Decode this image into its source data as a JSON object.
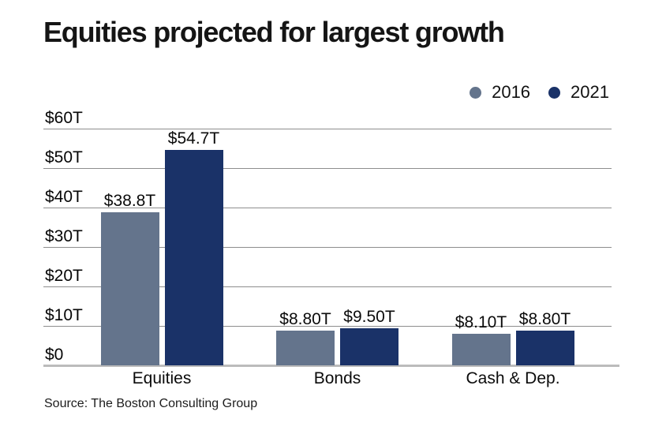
{
  "title": "Equities projected for largest growth",
  "source": "Source: The Boston Consulting Group",
  "colors": {
    "series_2016": "#64748C",
    "series_2021": "#1A3268",
    "gridline": "#8e8e8e",
    "axis_baseline": "#bcbcbc",
    "text": "#111111",
    "background": "#ffffff"
  },
  "legend": {
    "position": "top-right",
    "items": [
      {
        "label": "2016",
        "color": "#64748C"
      },
      {
        "label": "2021",
        "color": "#1A3268"
      }
    ]
  },
  "chart_data": {
    "type": "bar",
    "title": "Equities projected for largest growth",
    "categories": [
      "Equities",
      "Bonds",
      "Cash & Dep."
    ],
    "series": [
      {
        "name": "2016",
        "color": "#64748C",
        "values": [
          38.8,
          8.8,
          8.1
        ],
        "labels": [
          "$38.8T",
          "$8.80T",
          "$8.10T"
        ]
      },
      {
        "name": "2021",
        "color": "#1A3268",
        "values": [
          54.7,
          9.5,
          8.8
        ],
        "labels": [
          "$54.7T",
          "$9.50T",
          "$8.80T"
        ]
      }
    ],
    "xlabel": "",
    "ylabel": "",
    "ylim": [
      0,
      60
    ],
    "yticks": [
      {
        "value": 0,
        "label": "$0"
      },
      {
        "value": 10,
        "label": "$10T"
      },
      {
        "value": 20,
        "label": "$20T"
      },
      {
        "value": 30,
        "label": "$30T"
      },
      {
        "value": 40,
        "label": "$40T"
      },
      {
        "value": 50,
        "label": "$50T"
      },
      {
        "value": 60,
        "label": "$60T"
      }
    ],
    "grid": true,
    "legend_position": "top-right",
    "source": "Source: The Boston Consulting Group"
  }
}
